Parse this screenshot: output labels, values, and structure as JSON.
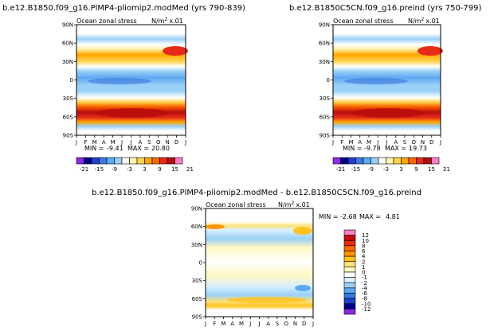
{
  "colors": {
    "level_colors_21": [
      "#8a2be2",
      "#00008b",
      "#1f3fcf",
      "#3b78e0",
      "#5fa8f0",
      "#9ad0f7",
      "#ffffff",
      "#fff4b0",
      "#ffd24d",
      "#ffa500",
      "#ff6600",
      "#e62a1a",
      "#b80d0d",
      "#ff80c0"
    ],
    "level_colors_12": [
      "#8a2be2",
      "#00008b",
      "#1f3fcf",
      "#3b78e0",
      "#5fa8f0",
      "#9ad0f7",
      "#d8f0ff",
      "#ffffff",
      "#fff7c2",
      "#ffe27a",
      "#ffc21f",
      "#ff9500",
      "#ff6a00",
      "#e52a16",
      "#c80c0c",
      "#ff80c0"
    ]
  },
  "chart_data": [
    {
      "type": "heatmap",
      "title": "b.e12.B1850.f09_g16.PlMP4-pliomip2.modMed (yrs 790-839)",
      "subtitle_left": "Ocean zonal stress",
      "units": "N/m",
      "units_sup": "2",
      "units_scale": "x.01",
      "x_tick_labels": [
        "J",
        "F",
        "M",
        "A",
        "M",
        "J",
        "J",
        "A",
        "S",
        "O",
        "N",
        "D",
        "J"
      ],
      "y_tick_labels": [
        "90N",
        "60N",
        "30N",
        "0",
        "30S",
        "60S",
        "90S"
      ],
      "y_values": [
        90,
        60,
        30,
        0,
        -30,
        -60,
        -90
      ],
      "ylim": [
        -90,
        90
      ],
      "min_label": "MIN =",
      "min_value": "-9.41",
      "max_label": "MAX =",
      "max_value": "20.80",
      "colorbar_levels": [
        "-21",
        "-15",
        "-9",
        "-3",
        "3",
        "9",
        "15",
        "21"
      ]
    },
    {
      "type": "heatmap",
      "title": "b.e12.B1850C5CN.f09_g16.preind (yrs 750-799)",
      "subtitle_left": "Ocean zonal stress",
      "units": "N/m",
      "units_sup": "2",
      "units_scale": "x.01",
      "x_tick_labels": [
        "J",
        "F",
        "M",
        "A",
        "M",
        "J",
        "J",
        "A",
        "S",
        "O",
        "N",
        "D",
        "J"
      ],
      "y_tick_labels": [
        "90N",
        "60N",
        "30N",
        "0",
        "30S",
        "60S",
        "90S"
      ],
      "y_values": [
        90,
        60,
        30,
        0,
        -30,
        -60,
        -90
      ],
      "ylim": [
        -90,
        90
      ],
      "min_label": "MIN =",
      "min_value": "-9.78",
      "max_label": "MAX =",
      "max_value": "19.73",
      "colorbar_levels": [
        "-21",
        "-15",
        "-9",
        "-3",
        "3",
        "9",
        "15",
        "21"
      ]
    },
    {
      "type": "heatmap",
      "title": "b.e12.B1850.f09_g16.PlMP4-pliomip2.modMed - b.e12.B1850C5CN.f09_g16.preind",
      "subtitle_left": "Ocean zonal stress",
      "units": "N/m",
      "units_sup": "2",
      "units_scale": "x.01",
      "x_tick_labels": [
        "J",
        "F",
        "M",
        "A",
        "M",
        "J",
        "J",
        "A",
        "S",
        "O",
        "N",
        "D",
        "J"
      ],
      "y_tick_labels": [
        "90N",
        "60N",
        "30N",
        "0",
        "30S",
        "60S",
        "90S"
      ],
      "y_values": [
        90,
        60,
        30,
        0,
        -30,
        -60,
        -90
      ],
      "ylim": [
        -90,
        90
      ],
      "min_label": "MIN =",
      "min_value": "-2.68",
      "max_label": "MAX =",
      "max_value": "4.81",
      "colorbar_levels": [
        "12",
        "10",
        "8",
        "6",
        "4",
        "2",
        "1",
        "0",
        "-1",
        "-2",
        "-4",
        "-6",
        "-8",
        "-10",
        "-12"
      ]
    }
  ]
}
